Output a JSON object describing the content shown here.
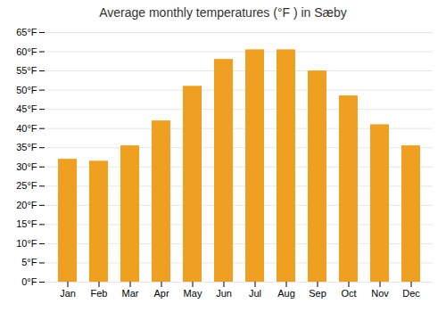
{
  "chart_data": {
    "type": "bar",
    "title": "Average monthly temperatures (°F ) in Sæby",
    "categories": [
      "Jan",
      "Feb",
      "Mar",
      "Apr",
      "May",
      "Jun",
      "Jul",
      "Aug",
      "Sep",
      "Oct",
      "Nov",
      "Dec"
    ],
    "values": [
      32,
      31.5,
      35.5,
      42,
      51,
      58,
      60.5,
      60.5,
      55,
      48.5,
      41,
      35.5
    ],
    "color": "#F0A020",
    "ylim": [
      0,
      65
    ],
    "yticks": [
      {
        "value": 0,
        "label": "0°F"
      },
      {
        "value": 5,
        "label": "5°F"
      },
      {
        "value": 10,
        "label": "10°F"
      },
      {
        "value": 15,
        "label": "15°F"
      },
      {
        "value": 20,
        "label": "20°F"
      },
      {
        "value": 25,
        "label": "25°F"
      },
      {
        "value": 30,
        "label": "30°F"
      },
      {
        "value": 35,
        "label": "35°F"
      },
      {
        "value": 40,
        "label": "40°F"
      },
      {
        "value": 45,
        "label": "45°F"
      },
      {
        "value": 50,
        "label": "50°F"
      },
      {
        "value": 55,
        "label": "55°F"
      },
      {
        "value": 60,
        "label": "60°F"
      },
      {
        "value": 65,
        "label": "65°F"
      }
    ],
    "grid": true
  }
}
